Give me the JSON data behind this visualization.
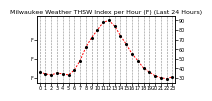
{
  "title": "Milwaukee Weather THSW Index per Hour (F) (Last 24 Hours)",
  "hours": [
    0,
    1,
    2,
    3,
    4,
    5,
    6,
    7,
    8,
    9,
    10,
    11,
    12,
    13,
    14,
    15,
    16,
    17,
    18,
    19,
    20,
    21,
    22,
    23
  ],
  "values": [
    36,
    34,
    33,
    35,
    34,
    33,
    38,
    48,
    62,
    72,
    80,
    88,
    90,
    84,
    74,
    65,
    55,
    48,
    40,
    36,
    32,
    30,
    29,
    31
  ],
  "ylim": [
    25,
    95
  ],
  "yticks_right": [
    30,
    40,
    50,
    60,
    70,
    80,
    90
  ],
  "line_color": "#ff0000",
  "dot_color": "#000000",
  "bg_color": "#ffffff",
  "plot_bg": "#ffffff",
  "grid_color": "#888888",
  "title_color": "#000000",
  "title_fontsize": 4.5,
  "tick_fontsize": 3.5,
  "left_ytick_fontsize": 3.5,
  "left_yticks": [
    30,
    50,
    70
  ],
  "left_ytick_labels": [
    "F",
    "F",
    "F"
  ]
}
